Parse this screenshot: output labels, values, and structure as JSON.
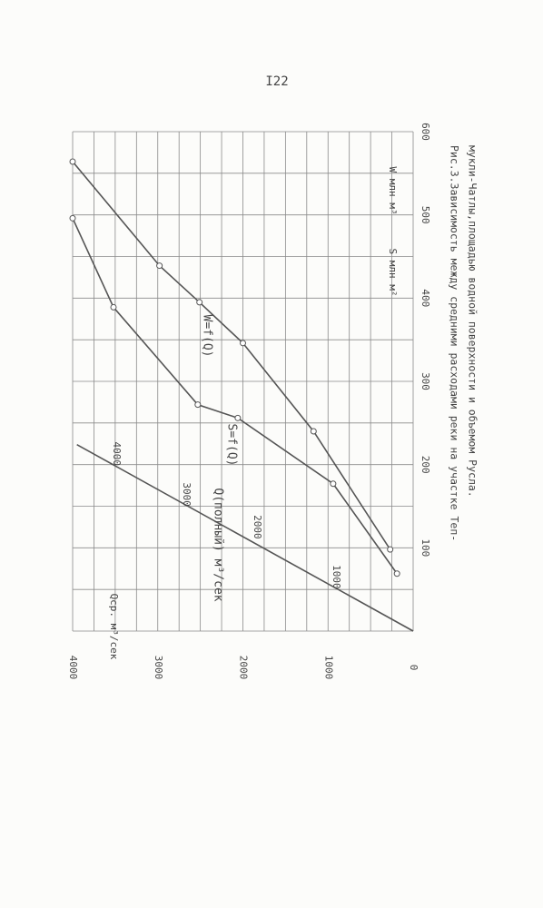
{
  "page_number": "I22",
  "chart_data": {
    "type": "line",
    "caption_lines": [
      "Рис.3.Зависимость между средними расходами реки на участке Теп-",
      "мукли-Чатлы,площадью водной поверхности и объемом Русла."
    ],
    "xlabel": "Qср. м³/сек",
    "ylabels": [
      "S млн м²",
      "W млн м³"
    ],
    "xlim": [
      0,
      4000
    ],
    "xticks": [
      0,
      1000,
      2000,
      3000,
      4000
    ],
    "ylim": [
      0,
      600
    ],
    "yticks": [
      100,
      200,
      300,
      400,
      500,
      600
    ],
    "grid": true,
    "x_minor_ticks": [
      250,
      500,
      750,
      1250,
      1500,
      1750,
      2250,
      2500,
      2750,
      3250,
      3500,
      3750
    ],
    "y_minor_ticks": [
      0,
      50,
      150,
      250,
      350,
      450,
      550
    ],
    "series": [
      {
        "name": "W=f(Q)",
        "color": "#555555",
        "x": [
          270,
          1170,
          2000,
          2510,
          2980,
          4000
        ],
        "values": [
          98,
          240,
          346,
          395,
          439,
          564
        ]
      },
      {
        "name": "S=f(Q)",
        "color": "#555555",
        "x": [
          190,
          940,
          2060,
          2530,
          3520,
          4000
        ],
        "values": [
          69,
          177,
          256,
          272,
          389,
          496
        ]
      },
      {
        "name": "Q(полный) м³/сек",
        "color": "#555555",
        "x": [
          0,
          3950
        ],
        "values": [
          0,
          224
        ]
      }
    ],
    "annotations": [
      {
        "text": "1000",
        "x": 907,
        "y": 65
      },
      {
        "text": "2000",
        "x": 1835,
        "y": 125
      },
      {
        "text": "3000",
        "x": 2667,
        "y": 164
      },
      {
        "text": "4000",
        "x": 3488,
        "y": 213
      }
    ]
  }
}
